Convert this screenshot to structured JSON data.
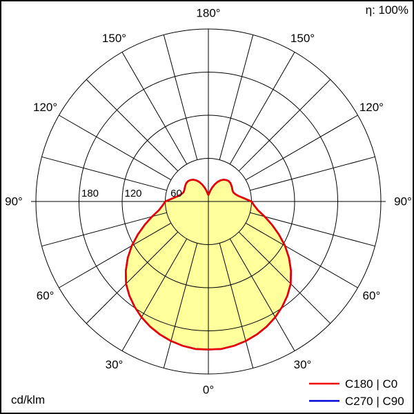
{
  "chart_data": {
    "type": "polar",
    "unit_label": "cd/klm",
    "efficiency_label": "η: 100%",
    "scale_max": 240,
    "ring_values": [
      60,
      120,
      180
    ],
    "angle_step_deg": 15,
    "angle_labels_deg": [
      0,
      30,
      60,
      90,
      120,
      150,
      180
    ],
    "grid_color": "#000000",
    "background_color": "#ffffff",
    "legend": [
      {
        "label": "C180 | C0",
        "color": "#ee0000"
      },
      {
        "label": "C270 | C90",
        "color": "#0000dd"
      }
    ],
    "series": [
      {
        "name": "C270 | C90",
        "color": "#0000dd",
        "fill": "none",
        "symmetric": true,
        "gamma_deg": [
          0,
          5,
          10,
          15,
          20,
          25,
          30,
          35,
          40,
          45,
          50,
          55,
          60,
          65,
          70,
          75,
          80,
          85,
          90,
          95,
          100,
          105,
          110,
          115,
          120,
          125,
          130,
          135,
          140,
          145,
          150,
          155,
          160,
          165,
          170,
          175,
          180
        ],
        "intensity_cd_klm": [
          206,
          206,
          204,
          201,
          197,
          192,
          186,
          179,
          171,
          162,
          150,
          137,
          123,
          108,
          94,
          81,
          70,
          64,
          60,
          50,
          43,
          39,
          37,
          37,
          38,
          39,
          40,
          40,
          39,
          37,
          34,
          30,
          25,
          20,
          15,
          11,
          9
        ]
      },
      {
        "name": "C180 | C0",
        "color": "#ee0000",
        "fill": "#ffff9b",
        "symmetric": true,
        "gamma_deg": [
          0,
          5,
          10,
          15,
          20,
          25,
          30,
          35,
          40,
          45,
          50,
          55,
          60,
          65,
          70,
          75,
          80,
          85,
          90,
          95,
          100,
          105,
          110,
          115,
          120,
          125,
          130,
          135,
          140,
          145,
          150,
          155,
          160,
          165,
          170,
          175,
          180
        ],
        "intensity_cd_klm": [
          206,
          206,
          204,
          201,
          197,
          192,
          186,
          179,
          171,
          162,
          150,
          137,
          123,
          108,
          94,
          81,
          70,
          64,
          60,
          50,
          43,
          39,
          37,
          37,
          38,
          39,
          40,
          40,
          39,
          37,
          34,
          30,
          25,
          20,
          15,
          11,
          9
        ]
      }
    ]
  }
}
